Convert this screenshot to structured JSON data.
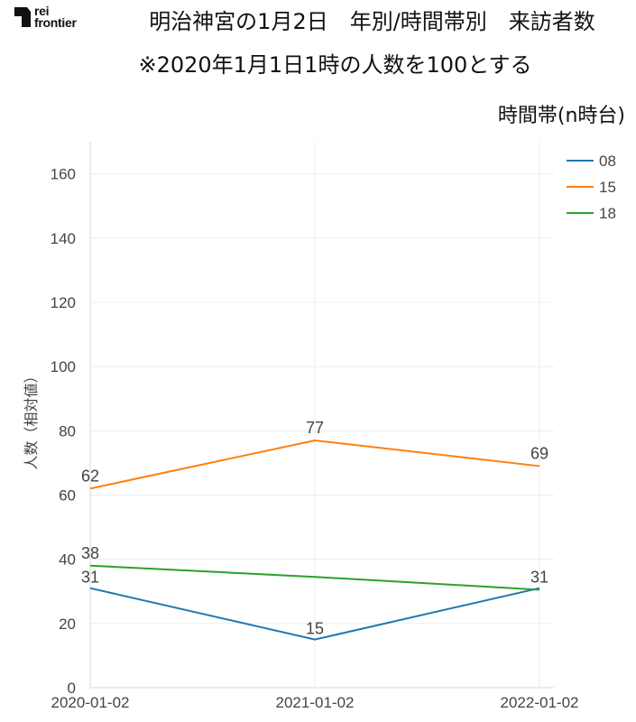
{
  "logo": {
    "line1": "rei",
    "line2": "frontier"
  },
  "chart_data": {
    "type": "line",
    "title": "明治神宮の1月2日　年別/時間帯別　来訪者数",
    "subtitle": "※2020年1月1日1時の人数を100とする",
    "legend_title": "時間帯(n時台)",
    "xlabel": "",
    "ylabel": "人数（相対値）",
    "categories": [
      "2020-01-02",
      "2021-01-02",
      "2022-01-02"
    ],
    "ylim": [
      0,
      170
    ],
    "yticks": [
      0,
      20,
      40,
      60,
      80,
      100,
      120,
      140,
      160
    ],
    "grid": true,
    "legend_position": "top-right",
    "series": [
      {
        "name": "08",
        "color": "#1f77b4",
        "values": [
          31,
          15,
          31
        ],
        "labels": [
          "31",
          "15",
          "31"
        ]
      },
      {
        "name": "15",
        "color": "#ff7f0e",
        "values": [
          62,
          77,
          69
        ],
        "labels": [
          "62",
          "77",
          "69"
        ]
      },
      {
        "name": "18",
        "color": "#2ca02c",
        "values": [
          38,
          34.5,
          30.5
        ],
        "labels": [
          "38",
          "",
          ""
        ]
      }
    ]
  }
}
